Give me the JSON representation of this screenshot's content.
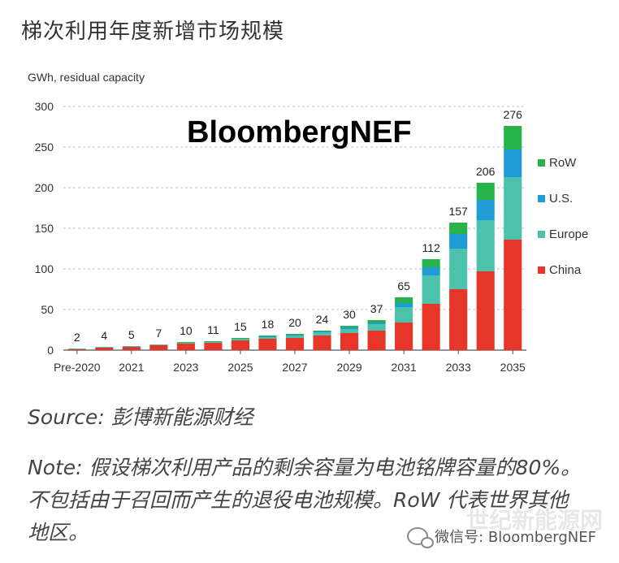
{
  "heading": "梯次利用年度新增市场规模",
  "source": "Source: 彭博新能源财经",
  "note": "Note: 假设梯次利用产品的剩余容量为电池铭牌容量的80%。不包括由于召回而产生的退役电池规模。RoW 代表世界其他地区。",
  "wechat": "微信号: BloombergNEF",
  "watermark": "世纪新能源网",
  "colors": {
    "China": "#e8352a",
    "Europe": "#4cc2aa",
    "U.S.": "#1f9bd7",
    "RoW": "#27b24a"
  },
  "chart_data": {
    "type": "bar",
    "stacked": true,
    "ylabel": "GWh, residual capacity",
    "ylim": [
      0,
      300
    ],
    "yticks": [
      0,
      50,
      100,
      150,
      200,
      250,
      300
    ],
    "grid": true,
    "legend_position": "right",
    "brand_text": "BloombergNEF",
    "categories": [
      "Pre-2020",
      "2020",
      "2021",
      "2022",
      "2023",
      "2024",
      "2025",
      "2026",
      "2027",
      "2028",
      "2029",
      "2030",
      "2031",
      "2032",
      "2033",
      "2034",
      "2035"
    ],
    "x_tick_labels": [
      "Pre-2020",
      "",
      "2021",
      "",
      "2023",
      "",
      "2025",
      "",
      "2027",
      "",
      "2029",
      "",
      "2031",
      "",
      "2033",
      "",
      "2035"
    ],
    "totals": [
      2,
      4,
      5,
      7,
      10,
      11,
      15,
      18,
      20,
      24,
      30,
      37,
      65,
      112,
      157,
      206,
      276
    ],
    "series": [
      {
        "name": "China",
        "values": [
          1,
          3,
          4,
          6,
          8,
          9,
          12,
          14,
          15,
          18,
          21,
          24,
          34,
          57,
          75,
          97,
          136
        ]
      },
      {
        "name": "Europe",
        "values": [
          1,
          1,
          1,
          1,
          1,
          1,
          2,
          2,
          3,
          4,
          5,
          8,
          19,
          35,
          50,
          63,
          77
        ]
      },
      {
        "name": "U.S.",
        "values": [
          0,
          0,
          0,
          0,
          0,
          0,
          0,
          1,
          1,
          1,
          2,
          2,
          5,
          10,
          18,
          25,
          34
        ]
      },
      {
        "name": "RoW",
        "values": [
          0,
          0,
          0,
          0,
          1,
          1,
          1,
          1,
          1,
          1,
          2,
          3,
          7,
          10,
          14,
          21,
          29
        ]
      }
    ]
  }
}
